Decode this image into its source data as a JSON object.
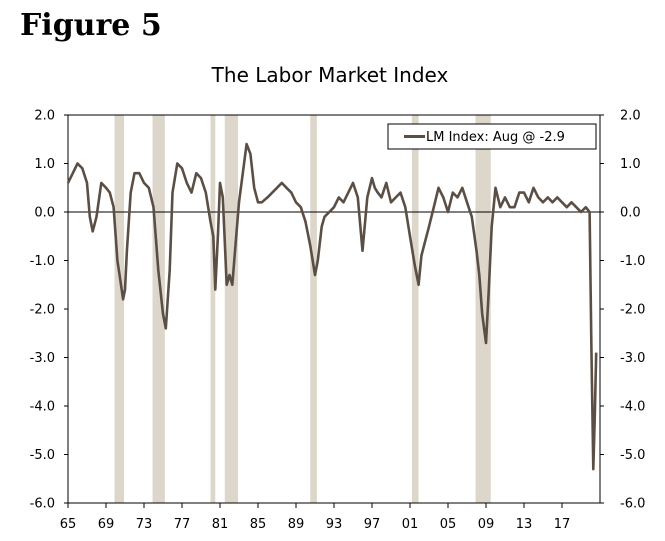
{
  "figure_label": "Figure 5",
  "chart_data": {
    "type": "line",
    "title": "The Labor Market Index",
    "xlabel": "",
    "ylabel": "",
    "xlim": [
      1965,
      2021
    ],
    "ylim": [
      -6.0,
      2.0
    ],
    "x_tick_values": [
      1965,
      1969,
      1973,
      1977,
      1981,
      1985,
      1989,
      1993,
      1997,
      2001,
      2005,
      2009,
      2013,
      2017
    ],
    "x_tick_labels": [
      "65",
      "69",
      "73",
      "77",
      "81",
      "85",
      "89",
      "93",
      "97",
      "01",
      "05",
      "09",
      "13",
      "17"
    ],
    "y_tick_values": [
      2.0,
      1.0,
      0.0,
      -1.0,
      -2.0,
      -3.0,
      -4.0,
      -5.0,
      -6.0
    ],
    "y_tick_labels": [
      "2.0",
      "1.0",
      "0.0",
      "-1.0",
      "-2.0",
      "-3.0",
      "-4.0",
      "-5.0",
      "-6.0"
    ],
    "legend": {
      "placement": "top-right",
      "label": "LM Index: Aug @ -2.9"
    },
    "recessions": [
      [
        1969.9,
        1970.9
      ],
      [
        1973.9,
        1975.2
      ],
      [
        1980.0,
        1980.5
      ],
      [
        1981.5,
        1982.9
      ],
      [
        1990.5,
        1991.2
      ],
      [
        2001.2,
        2001.9
      ],
      [
        2007.9,
        2009.5
      ]
    ],
    "colors": {
      "line": "#5b4f45",
      "recession": "#dcd6cb",
      "axis": "#000000",
      "zero_line": "#000000"
    },
    "series": [
      {
        "name": "LM Index",
        "x": [
          1965.0,
          1965.5,
          1966.0,
          1966.5,
          1967.0,
          1967.3,
          1967.6,
          1968.0,
          1968.5,
          1969.0,
          1969.4,
          1969.8,
          1970.2,
          1970.5,
          1970.8,
          1971.0,
          1971.2,
          1971.6,
          1972.0,
          1972.5,
          1973.0,
          1973.5,
          1974.0,
          1974.5,
          1975.0,
          1975.3,
          1975.7,
          1976.0,
          1976.5,
          1977.0,
          1977.5,
          1978.0,
          1978.5,
          1979.0,
          1979.5,
          1980.0,
          1980.3,
          1980.5,
          1980.8,
          1981.0,
          1981.3,
          1981.7,
          1982.0,
          1982.3,
          1982.7,
          1983.0,
          1983.4,
          1983.8,
          1984.2,
          1984.6,
          1985.0,
          1985.4,
          1986.0,
          1986.5,
          1987.0,
          1987.5,
          1988.0,
          1988.5,
          1989.0,
          1989.5,
          1990.0,
          1990.5,
          1991.0,
          1991.3,
          1991.7,
          1992.0,
          1992.5,
          1993.0,
          1993.5,
          1994.0,
          1994.5,
          1995.0,
          1995.5,
          1996.0,
          1996.5,
          1997.0,
          1997.3,
          1997.6,
          1998.0,
          1998.5,
          1999.0,
          1999.5,
          2000.0,
          2000.5,
          2001.0,
          2001.5,
          2001.9,
          2002.2,
          2002.6,
          2003.0,
          2003.5,
          2004.0,
          2004.5,
          2005.0,
          2005.5,
          2006.0,
          2006.5,
          2007.0,
          2007.5,
          2008.0,
          2008.3,
          2008.6,
          2009.0,
          2009.3,
          2009.6,
          2010.0,
          2010.5,
          2011.0,
          2011.5,
          2012.0,
          2012.5,
          2013.0,
          2013.5,
          2014.0,
          2014.5,
          2015.0,
          2015.5,
          2016.0,
          2016.5,
          2017.0,
          2017.5,
          2018.0,
          2018.5,
          2019.0,
          2019.5,
          2019.9,
          2020.1,
          2020.3,
          2020.45,
          2020.6
        ],
        "values": [
          0.6,
          0.8,
          1.0,
          0.9,
          0.6,
          -0.1,
          -0.4,
          -0.1,
          0.6,
          0.5,
          0.4,
          0.1,
          -1.0,
          -1.4,
          -1.8,
          -1.6,
          -0.8,
          0.4,
          0.8,
          0.8,
          0.6,
          0.5,
          0.1,
          -1.2,
          -2.1,
          -2.4,
          -1.2,
          0.4,
          1.0,
          0.9,
          0.6,
          0.4,
          0.8,
          0.7,
          0.4,
          -0.2,
          -0.5,
          -1.6,
          -0.4,
          0.6,
          0.3,
          -1.5,
          -1.3,
          -1.5,
          -0.5,
          0.2,
          0.8,
          1.4,
          1.2,
          0.5,
          0.2,
          0.2,
          0.3,
          0.4,
          0.5,
          0.6,
          0.5,
          0.4,
          0.2,
          0.1,
          -0.2,
          -0.7,
          -1.3,
          -1.0,
          -0.3,
          -0.1,
          0.0,
          0.1,
          0.3,
          0.2,
          0.4,
          0.6,
          0.3,
          -0.8,
          0.3,
          0.7,
          0.5,
          0.4,
          0.3,
          0.6,
          0.2,
          0.3,
          0.4,
          0.1,
          -0.5,
          -1.1,
          -1.5,
          -0.9,
          -0.6,
          -0.3,
          0.1,
          0.5,
          0.3,
          0.0,
          0.4,
          0.3,
          0.5,
          0.2,
          -0.1,
          -0.8,
          -1.3,
          -2.1,
          -2.7,
          -1.6,
          -0.3,
          0.5,
          0.1,
          0.3,
          0.1,
          0.1,
          0.4,
          0.4,
          0.2,
          0.5,
          0.3,
          0.2,
          0.3,
          0.2,
          0.3,
          0.2,
          0.1,
          0.2,
          0.1,
          0.0,
          0.1,
          0.0,
          -2.8,
          -5.3,
          -4.2,
          -2.9
        ]
      }
    ]
  }
}
